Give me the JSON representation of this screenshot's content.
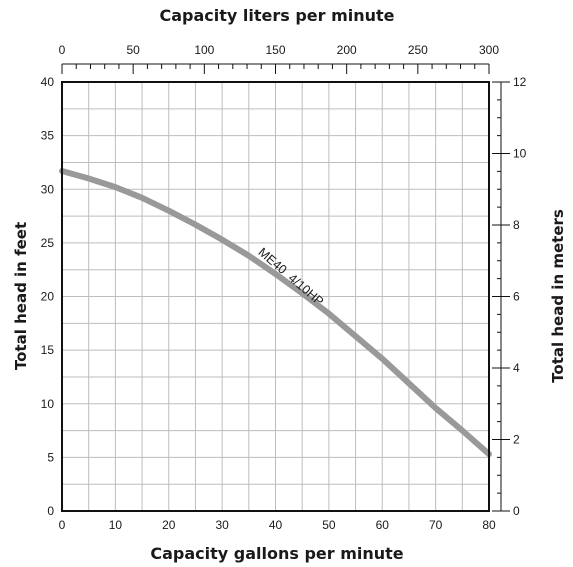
{
  "chart_data": {
    "type": "line",
    "title_top": "Capacity liters per minute",
    "xlabel": "Capacity gallons per minute",
    "ylabel": "Total head in feet",
    "ylabel_right": "Total head in meters",
    "xlim": [
      0,
      80
    ],
    "ylim": [
      0,
      40
    ],
    "x_top_lim": [
      0,
      300
    ],
    "y_right_lim": [
      0,
      12
    ],
    "x_ticks": [
      0,
      10,
      20,
      30,
      40,
      50,
      60,
      70,
      80
    ],
    "y_ticks": [
      0,
      5,
      10,
      15,
      20,
      25,
      30,
      35,
      40
    ],
    "x_top_ticks": [
      0,
      50,
      100,
      150,
      200,
      250,
      300
    ],
    "y_right_ticks": [
      0,
      2,
      4,
      6,
      8,
      10,
      12
    ],
    "grid": true,
    "series": [
      {
        "name": "ME40  4/10HP",
        "color": "#999999",
        "x": [
          0,
          5,
          10,
          15,
          20,
          25,
          30,
          35,
          40,
          45,
          50,
          55,
          60,
          65,
          70,
          75,
          80
        ],
        "y": [
          31.7,
          31.0,
          30.2,
          29.2,
          28.0,
          26.7,
          25.3,
          23.8,
          22.1,
          20.3,
          18.4,
          16.3,
          14.2,
          11.9,
          9.6,
          7.5,
          5.3
        ]
      }
    ]
  }
}
